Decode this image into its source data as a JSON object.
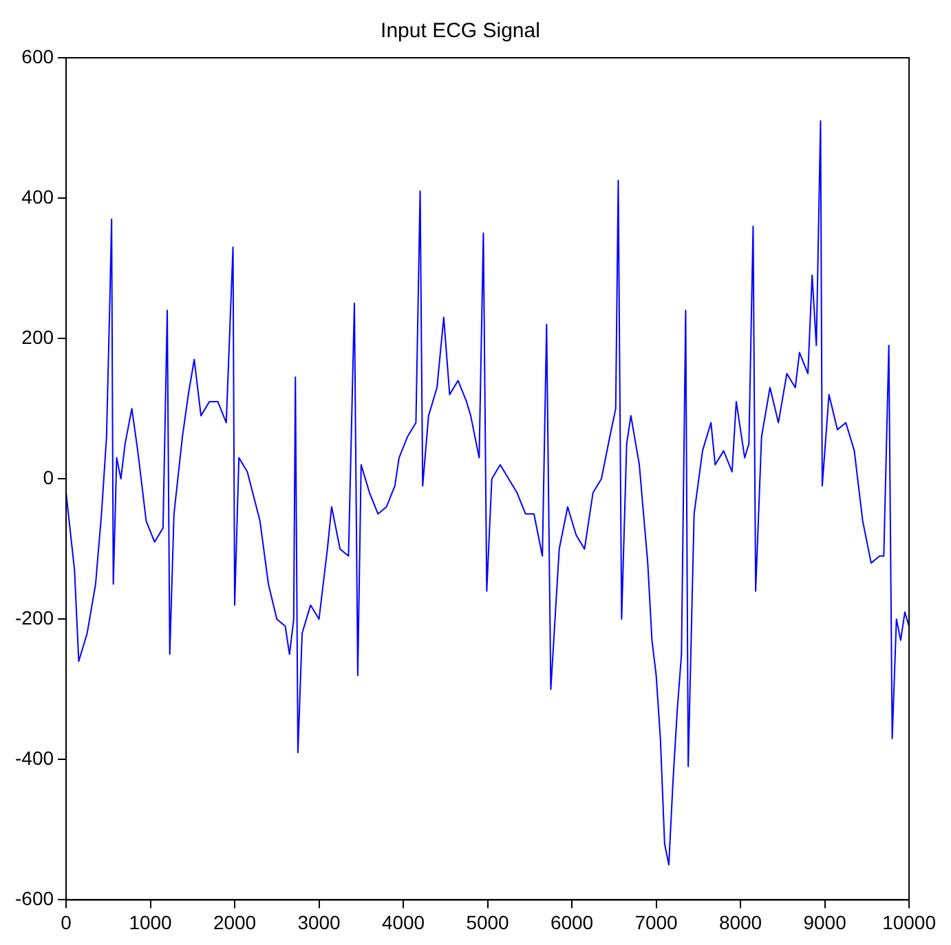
{
  "chart_data": {
    "type": "line",
    "title": "Input ECG Signal",
    "x": [
      0,
      100,
      150,
      250,
      350,
      420,
      480,
      520,
      540,
      560,
      600,
      650,
      700,
      780,
      850,
      950,
      1050,
      1150,
      1200,
      1230,
      1280,
      1380,
      1450,
      1520,
      1600,
      1700,
      1800,
      1900,
      1980,
      2000,
      2050,
      2150,
      2300,
      2400,
      2500,
      2600,
      2650,
      2700,
      2720,
      2750,
      2800,
      2900,
      3000,
      3100,
      3150,
      3250,
      3350,
      3420,
      3460,
      3500,
      3600,
      3700,
      3800,
      3900,
      3950,
      4050,
      4150,
      4200,
      4230,
      4300,
      4400,
      4480,
      4550,
      4650,
      4750,
      4800,
      4900,
      4950,
      4990,
      5050,
      5150,
      5250,
      5350,
      5450,
      5550,
      5650,
      5700,
      5750,
      5800,
      5850,
      5950,
      6050,
      6150,
      6250,
      6350,
      6450,
      6520,
      6550,
      6590,
      6650,
      6700,
      6800,
      6900,
      6950,
      7000,
      7050,
      7100,
      7150,
      7200,
      7250,
      7300,
      7350,
      7380,
      7450,
      7550,
      7650,
      7700,
      7800,
      7900,
      7950,
      8050,
      8100,
      8150,
      8180,
      8250,
      8350,
      8450,
      8550,
      8650,
      8700,
      8800,
      8850,
      8900,
      8950,
      8970,
      9050,
      9150,
      9250,
      9350,
      9450,
      9550,
      9650,
      9700,
      9760,
      9800,
      9850,
      9900,
      9950,
      10000
    ],
    "series": [
      {
        "color": "#0000ff",
        "values": [
          -20,
          -130,
          -260,
          -220,
          -150,
          -50,
          60,
          260,
          370,
          -150,
          30,
          0,
          50,
          100,
          40,
          -60,
          -90,
          -70,
          240,
          -250,
          -50,
          60,
          120,
          170,
          90,
          110,
          110,
          80,
          330,
          -180,
          30,
          10,
          -60,
          -150,
          -200,
          -210,
          -250,
          -200,
          145,
          -390,
          -220,
          -180,
          -200,
          -100,
          -40,
          -100,
          -110,
          250,
          -280,
          20,
          -20,
          -50,
          -40,
          -10,
          30,
          60,
          80,
          410,
          -10,
          90,
          130,
          230,
          120,
          140,
          110,
          90,
          30,
          350,
          -160,
          0,
          20,
          0,
          -20,
          -50,
          -50,
          -110,
          220,
          -300,
          -200,
          -100,
          -40,
          -80,
          -100,
          -20,
          0,
          60,
          100,
          425,
          -200,
          50,
          90,
          20,
          -120,
          -230,
          -280,
          -370,
          -520,
          -550,
          -430,
          -330,
          -250,
          240,
          -410,
          -50,
          40,
          80,
          20,
          40,
          10,
          110,
          30,
          50,
          360,
          -160,
          60,
          130,
          80,
          150,
          130,
          180,
          150,
          290,
          190,
          510,
          -10,
          120,
          70,
          80,
          40,
          -60,
          -120,
          -110,
          -110,
          190,
          -370,
          -200,
          -230,
          -190,
          -210
        ]
      }
    ],
    "xlim": [
      0,
      10000
    ],
    "xticks": [
      0,
      1000,
      2000,
      3000,
      4000,
      5000,
      6000,
      7000,
      8000,
      9000,
      10000
    ],
    "ylim": [
      -600,
      600
    ],
    "yticks": [
      -600,
      -400,
      -200,
      0,
      200,
      400,
      600
    ],
    "grid": false,
    "legend": false,
    "marker": "none",
    "line_style": "solid"
  }
}
